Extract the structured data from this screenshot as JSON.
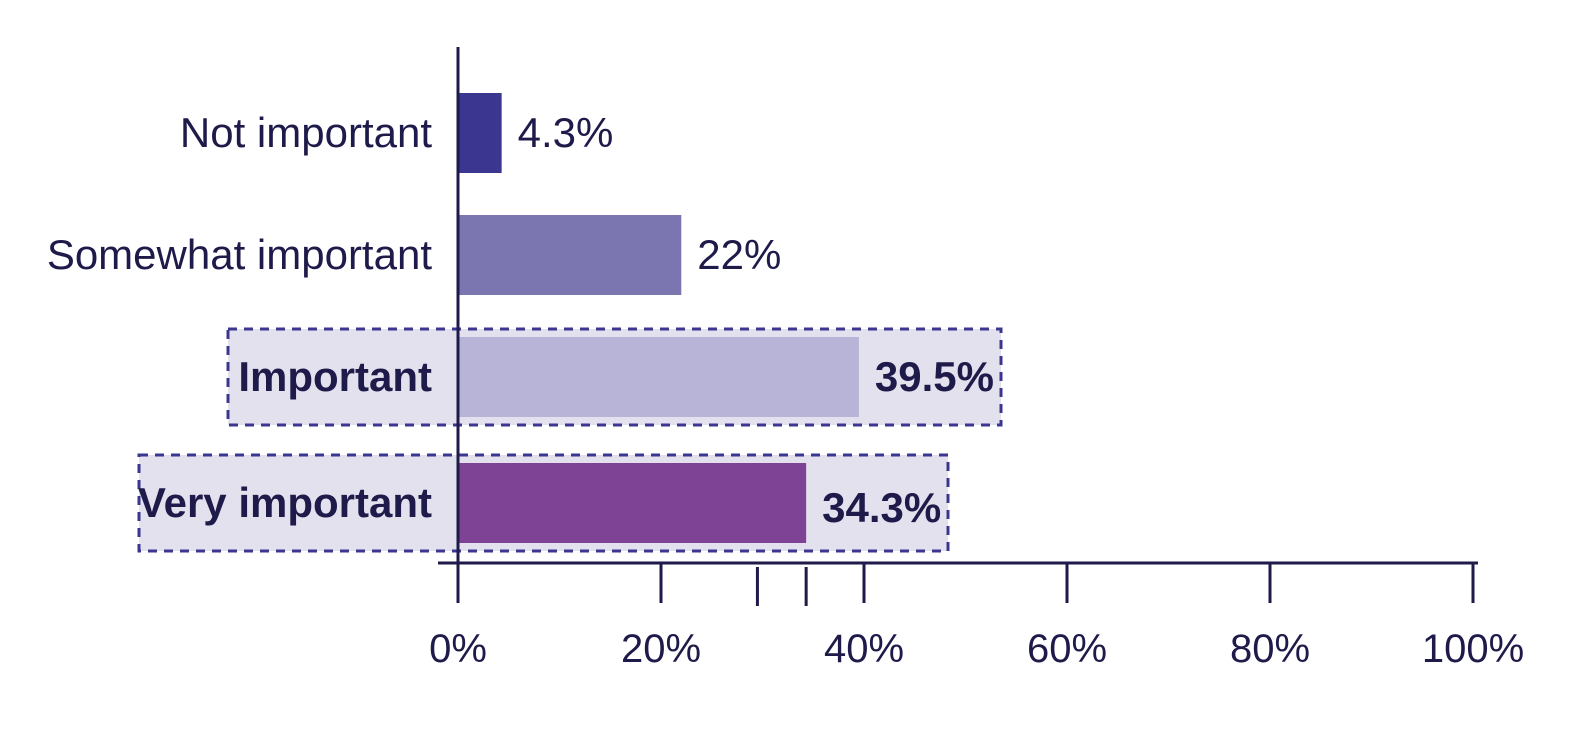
{
  "chart_data": {
    "type": "bar",
    "orientation": "horizontal",
    "categories": [
      "Not important",
      "Somewhat important",
      "Important",
      "Very important"
    ],
    "values": [
      4.3,
      22,
      39.5,
      34.3
    ],
    "value_labels": [
      "4.3%",
      "22%",
      "39.5%",
      "34.3%"
    ],
    "highlighted": [
      false,
      false,
      true,
      true
    ],
    "colors": [
      "#3b3791",
      "#7b76b0",
      "#b8b4d8",
      "#7e4394"
    ],
    "highlight_fill": "#e4e1ef",
    "highlight_border": "#3b3791",
    "text_color": "#1e1a4a",
    "xlim": [
      0,
      100
    ],
    "x_ticks": [
      0,
      20,
      40,
      60,
      80,
      100
    ],
    "x_tick_labels": [
      "0%",
      "20%",
      "40%",
      "60%",
      "80%",
      "100%"
    ],
    "x_minor_ticks": [
      29.5,
      34.3
    ],
    "title": "",
    "xlabel": "",
    "ylabel": "",
    "grid": false,
    "legend": "none"
  }
}
